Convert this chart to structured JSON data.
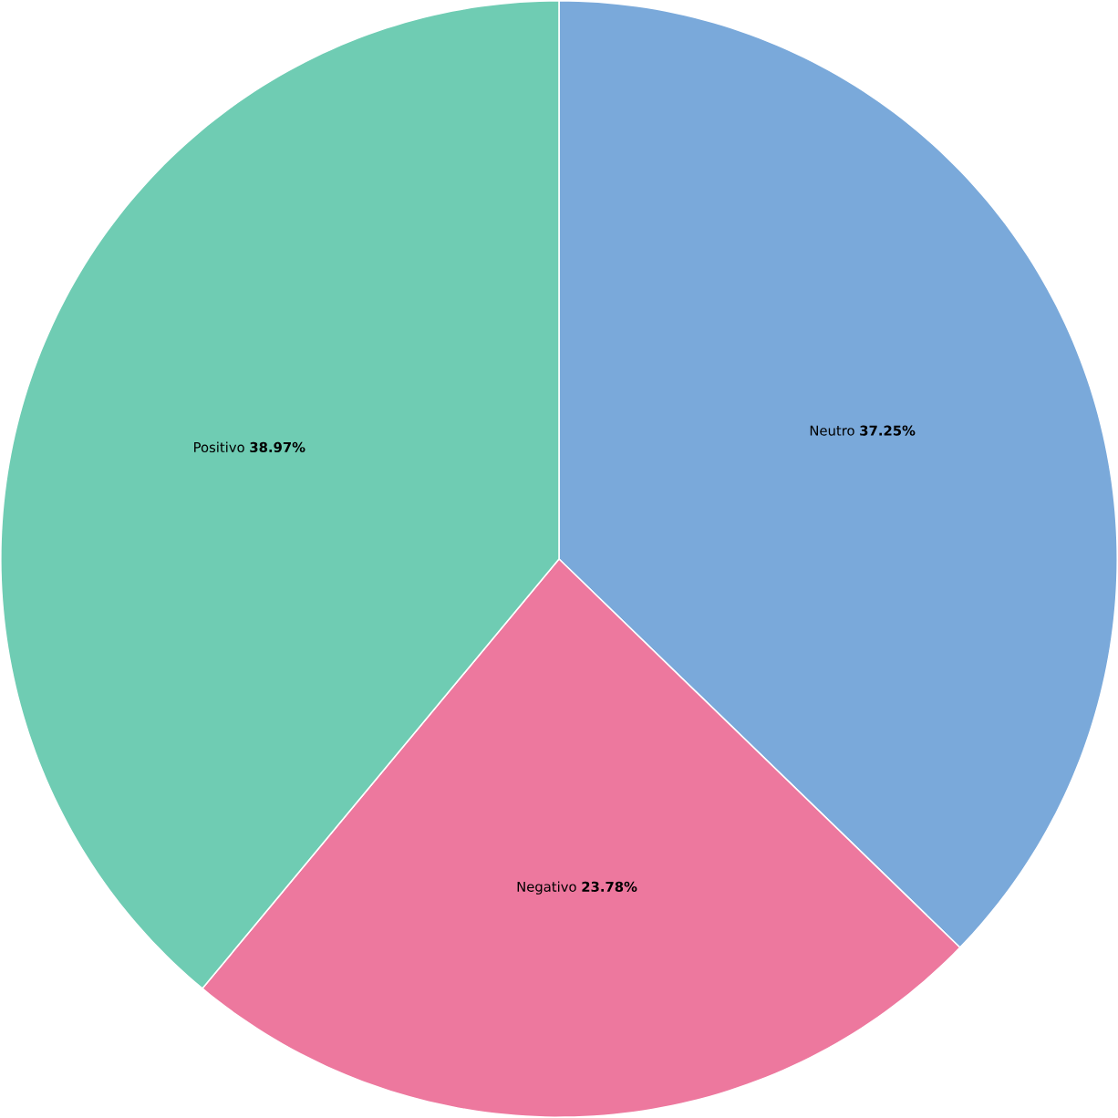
{
  "chart_data": {
    "type": "pie",
    "categories": [
      "Neutro",
      "Negativo",
      "Positivo"
    ],
    "values": [
      37.25,
      23.78,
      38.97
    ],
    "colors": [
      "#7aa9da",
      "#ed789e",
      "#6fccb3"
    ],
    "value_labels": [
      "**37.25%**",
      "**23.78%**",
      "**38.97%**"
    ],
    "legend": false
  }
}
